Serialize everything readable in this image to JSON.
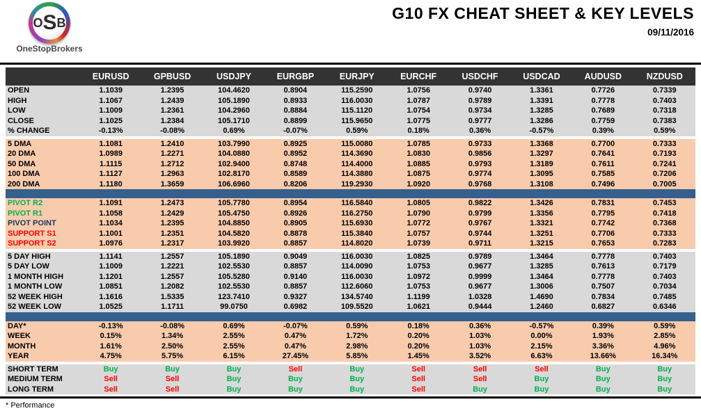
{
  "brand": {
    "logo": {
      "o": "O",
      "s": "S",
      "b": "B"
    },
    "name": "OneStopBrokers"
  },
  "header": {
    "title": "G10 FX CHEAT SHEET & KEY LEVELS",
    "date": "09/11/2016"
  },
  "colors": {
    "header_bg": "#333333",
    "gray_row": "#D9D9D9",
    "peach_row": "#F8CBAD",
    "blue_bar": "#35608D",
    "buy": "#00B050",
    "sell": "#FF0000",
    "resistance": "#00B050",
    "support": "#FF0000",
    "pivot": "#17375D"
  },
  "table": {
    "corner_label": "",
    "columns": [
      "EURUSD",
      "GPBUSD",
      "USDJPY",
      "EURGBP",
      "EURJPY",
      "EURCHF",
      "USDCHF",
      "USDCAD",
      "AUDUSD",
      "NZDUSD"
    ],
    "sections": [
      {
        "id": "ohlc",
        "style": "gray",
        "separator_before": "none",
        "type": "number",
        "rows": [
          {
            "label": "OPEN",
            "values": [
              "1.1039",
              "1.2395",
              "104.4620",
              "0.8904",
              "115.2590",
              "1.0756",
              "0.9740",
              "1.3361",
              "0.7726",
              "0.7339"
            ]
          },
          {
            "label": "HIGH",
            "values": [
              "1.1067",
              "1.2439",
              "105.1890",
              "0.8933",
              "116.0030",
              "1.0787",
              "0.9789",
              "1.3391",
              "0.7778",
              "0.7403"
            ]
          },
          {
            "label": "LOW",
            "values": [
              "1.1009",
              "1.2361",
              "104.2960",
              "0.8884",
              "115.1120",
              "1.0754",
              "0.9734",
              "1.3285",
              "0.7689",
              "0.7318"
            ]
          },
          {
            "label": "CLOSE",
            "values": [
              "1.1025",
              "1.2384",
              "105.1710",
              "0.8899",
              "115.9650",
              "1.0775",
              "0.9777",
              "1.3286",
              "0.7759",
              "0.7383"
            ]
          },
          {
            "label": "% CHANGE",
            "values": [
              "-0.13%",
              "-0.08%",
              "0.69%",
              "-0.07%",
              "0.59%",
              "0.18%",
              "0.36%",
              "-0.57%",
              "0.39%",
              "0.59%"
            ]
          }
        ]
      },
      {
        "id": "dma",
        "style": "peach",
        "separator_before": "gap",
        "type": "number",
        "rows": [
          {
            "label": "5 DMA",
            "values": [
              "1.1081",
              "1.2410",
              "103.7990",
              "0.8925",
              "115.0080",
              "1.0785",
              "0.9733",
              "1.3368",
              "0.7700",
              "0.7333"
            ]
          },
          {
            "label": "20 DMA",
            "values": [
              "1.0989",
              "1.2271",
              "104.0880",
              "0.8952",
              "114.3690",
              "1.0830",
              "0.9856",
              "1.3297",
              "0.7641",
              "0.7193"
            ]
          },
          {
            "label": "50 DMA",
            "values": [
              "1.1115",
              "1.2712",
              "102.9400",
              "0.8748",
              "114.4000",
              "1.0885",
              "0.9793",
              "1.3189",
              "0.7611",
              "0.7241"
            ]
          },
          {
            "label": "100 DMA",
            "values": [
              "1.1127",
              "1.2963",
              "102.8170",
              "0.8589",
              "114.3880",
              "1.0875",
              "0.9774",
              "1.3095",
              "0.7585",
              "0.7206"
            ]
          },
          {
            "label": "200 DMA",
            "values": [
              "1.1180",
              "1.3659",
              "106.6960",
              "0.8206",
              "119.2930",
              "1.0920",
              "0.9768",
              "1.3108",
              "0.7496",
              "0.7005"
            ]
          }
        ]
      },
      {
        "id": "pivots",
        "style": "peach",
        "separator_before": "bluebar",
        "type": "number",
        "rows": [
          {
            "label": "PIVOT R2",
            "label_color": "resistance",
            "values": [
              "1.1091",
              "1.2473",
              "105.7780",
              "0.8954",
              "116.5840",
              "1.0805",
              "0.9822",
              "1.3426",
              "0.7831",
              "0.7453"
            ]
          },
          {
            "label": "PIVOT R1",
            "label_color": "resistance",
            "values": [
              "1.1058",
              "1.2429",
              "105.4750",
              "0.8926",
              "116.2750",
              "1.0790",
              "0.9799",
              "1.3356",
              "0.7795",
              "0.7418"
            ]
          },
          {
            "label": "PIVOT POINT",
            "label_color": "pivot",
            "values": [
              "1.1034",
              "1.2395",
              "104.8850",
              "0.8905",
              "115.6930",
              "1.0772",
              "0.9767",
              "1.3321",
              "0.7742",
              "0.7368"
            ]
          },
          {
            "label": "SUPPORT S1",
            "label_color": "support",
            "values": [
              "1.1001",
              "1.2351",
              "104.5820",
              "0.8878",
              "115.3840",
              "1.0757",
              "0.9744",
              "1.3251",
              "0.7706",
              "0.7333"
            ]
          },
          {
            "label": "SUPPORT S2",
            "label_color": "support",
            "values": [
              "1.0976",
              "1.2317",
              "103.9920",
              "0.8857",
              "114.8020",
              "1.0739",
              "0.9711",
              "1.3215",
              "0.7653",
              "0.7283"
            ]
          }
        ]
      },
      {
        "id": "ranges",
        "style": "gray",
        "separator_before": "gap",
        "type": "number",
        "rows": [
          {
            "label": "5 DAY HIGH",
            "values": [
              "1.1141",
              "1.2557",
              "105.1890",
              "0.9049",
              "116.0030",
              "1.0825",
              "0.9789",
              "1.3464",
              "0.7778",
              "0.7403"
            ]
          },
          {
            "label": "5 DAY LOW",
            "values": [
              "1.1009",
              "1.2221",
              "102.5530",
              "0.8857",
              "114.0090",
              "1.0753",
              "0.9677",
              "1.3285",
              "0.7613",
              "0.7179"
            ]
          },
          {
            "label": "1 MONTH HIGH",
            "values": [
              "1.1201",
              "1.2557",
              "105.5280",
              "0.9140",
              "116.0030",
              "1.0972",
              "0.9999",
              "1.3464",
              "0.7778",
              "0.7403"
            ]
          },
          {
            "label": "1 MONTH LOW",
            "values": [
              "1.0851",
              "1.2082",
              "102.5530",
              "0.8857",
              "112.6060",
              "1.0753",
              "0.9677",
              "1.3006",
              "0.7507",
              "0.7034"
            ]
          },
          {
            "label": "52 WEEK HIGH",
            "values": [
              "1.1616",
              "1.5335",
              "123.7410",
              "0.9327",
              "134.5740",
              "1.1199",
              "1.0328",
              "1.4690",
              "0.7834",
              "0.7485"
            ]
          },
          {
            "label": "52 WEEK LOW",
            "values": [
              "1.0525",
              "1.1711",
              "99.0750",
              "0.6982",
              "109.5520",
              "1.0621",
              "0.9444",
              "1.2460",
              "0.6827",
              "0.6346"
            ]
          }
        ]
      },
      {
        "id": "performance",
        "style": "peach",
        "separator_before": "bluebar",
        "type": "number",
        "rows": [
          {
            "label": "DAY*",
            "values": [
              "-0.13%",
              "-0.08%",
              "0.69%",
              "-0.07%",
              "0.59%",
              "0.18%",
              "0.36%",
              "-0.57%",
              "0.39%",
              "0.59%"
            ]
          },
          {
            "label": "WEEK",
            "values": [
              "0.15%",
              "1.34%",
              "2.55%",
              "0.47%",
              "1.72%",
              "0.20%",
              "1.03%",
              "0.00%",
              "1.93%",
              "2.85%"
            ]
          },
          {
            "label": "MONTH",
            "values": [
              "1.61%",
              "2.50%",
              "2.55%",
              "0.47%",
              "2.98%",
              "0.20%",
              "1.03%",
              "2.15%",
              "3.36%",
              "4.96%"
            ]
          },
          {
            "label": "YEAR",
            "values": [
              "4.75%",
              "5.75%",
              "6.15%",
              "27.45%",
              "5.85%",
              "1.45%",
              "3.52%",
              "6.63%",
              "13.66%",
              "16.34%"
            ]
          }
        ]
      },
      {
        "id": "signals",
        "style": "gray",
        "separator_before": "gap",
        "type": "signal",
        "rows": [
          {
            "label": "SHORT TERM",
            "values": [
              "Buy",
              "Buy",
              "Buy",
              "Sell",
              "Buy",
              "Sell",
              "Sell",
              "Sell",
              "Buy",
              "Buy"
            ]
          },
          {
            "label": "MEDIUM TERM",
            "values": [
              "Sell",
              "Sell",
              "Buy",
              "Buy",
              "Buy",
              "Sell",
              "Sell",
              "Buy",
              "Buy",
              "Buy"
            ]
          },
          {
            "label": "LONG TERM",
            "values": [
              "Sell",
              "Sell",
              "Buy",
              "Buy",
              "Buy",
              "Sell",
              "Buy",
              "Buy",
              "Buy",
              "Buy"
            ]
          }
        ]
      }
    ]
  },
  "footer": {
    "note": "* Performance"
  }
}
